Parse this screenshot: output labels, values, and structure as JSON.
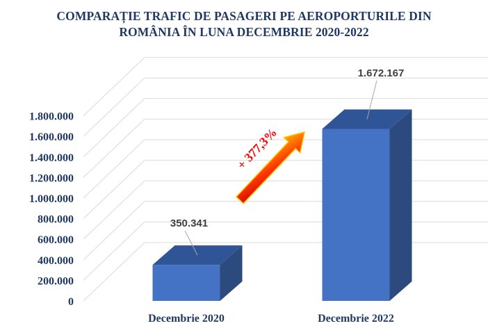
{
  "chart_data": {
    "type": "bar",
    "title_line1": "COMPARAȚIE TRAFIC DE PASAGERI PE AEROPORTURILE DIN",
    "title_line2": "ROMÂNIA ÎN LUNA DECEMBRIE 2020-2022",
    "categories": [
      "Decembrie 2020",
      "Decembrie 2022"
    ],
    "values": [
      350341,
      1672167
    ],
    "data_labels": [
      "350.341",
      "1.672.167"
    ],
    "ylim": [
      0,
      1800000
    ],
    "ytick_values": [
      0,
      200000,
      400000,
      600000,
      800000,
      1000000,
      1200000,
      1400000,
      1600000,
      1800000
    ],
    "ytick_labels": [
      "0",
      "200.000",
      "400.000",
      "600.000",
      "800.000",
      "1.000.000",
      "1.200.000",
      "1.400.000",
      "1.600.000",
      "1.800.000"
    ],
    "grid": true,
    "annotation": "+ 377,3%",
    "colors": {
      "bar_front": "#4472c4",
      "bar_top": "#2f5597",
      "bar_side": "#2c4a7e",
      "text": "#1f3864",
      "arrow": "#ff0000"
    }
  }
}
